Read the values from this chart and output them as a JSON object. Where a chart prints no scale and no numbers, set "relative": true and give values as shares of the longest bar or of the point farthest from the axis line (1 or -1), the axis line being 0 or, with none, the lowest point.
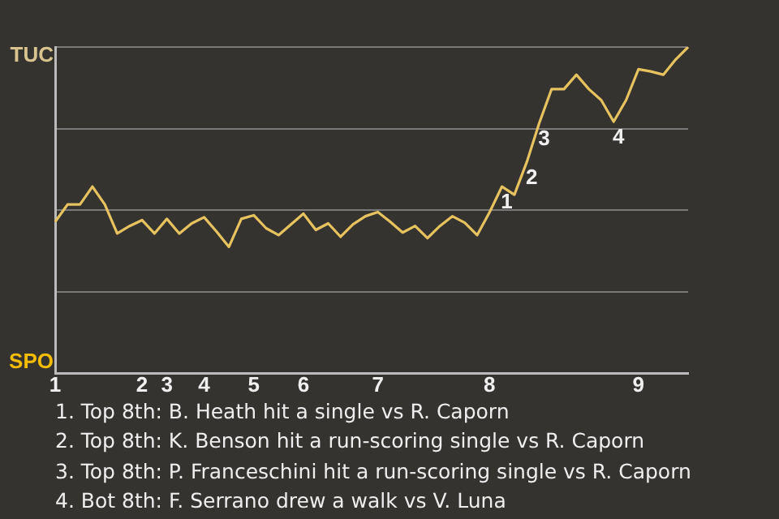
{
  "chart_data": {
    "type": "line",
    "categories": [
      "1",
      null,
      null,
      null,
      null,
      null,
      null,
      "2",
      null,
      "3",
      null,
      null,
      "4",
      null,
      null,
      null,
      "5",
      null,
      null,
      null,
      "6",
      null,
      null,
      null,
      null,
      null,
      "7",
      null,
      null,
      null,
      null,
      null,
      null,
      null,
      null,
      "8",
      null,
      null,
      null,
      null,
      null,
      null,
      null,
      null,
      null,
      null,
      null,
      "9",
      null,
      null,
      null,
      null
    ],
    "series": [
      {
        "color": "#e6c35e",
        "values": [
          0.464,
          0.517,
          0.517,
          0.572,
          0.517,
          0.428,
          0.451,
          0.469,
          0.428,
          0.473,
          0.428,
          0.459,
          0.478,
          0.434,
          0.387,
          0.473,
          0.484,
          0.444,
          0.423,
          0.456,
          0.489,
          0.439,
          0.459,
          0.418,
          0.456,
          0.481,
          0.494,
          0.464,
          0.431,
          0.451,
          0.414,
          0.451,
          0.481,
          0.461,
          0.423,
          0.493,
          0.572,
          0.547,
          0.647,
          0.766,
          0.871,
          0.871,
          0.915,
          0.871,
          0.837,
          0.771,
          0.837,
          0.932,
          0.925,
          0.915,
          0.962,
          1
        ]
      }
    ],
    "relative": true,
    "grid": "y",
    "annotations": [
      "TUC",
      "SPO",
      {
        "text": "1",
        "y": 0.572
      },
      {
        "text": "2",
        "y": 0.647
      },
      {
        "text": "3",
        "y": 0.766
      },
      {
        "text": "4",
        "y": 0.771
      },
      "1. Top 8th: B. Heath hit a single vs R. Caporn",
      "2. Top 8th: K. Benson hit a run-scoring single vs R. Caporn",
      "3. Top 8th: P. Franceschini hit a run-scoring single vs R. Caporn",
      "4. Bot 8th: F. Serrano drew a walk vs V. Luna"
    ]
  }
}
